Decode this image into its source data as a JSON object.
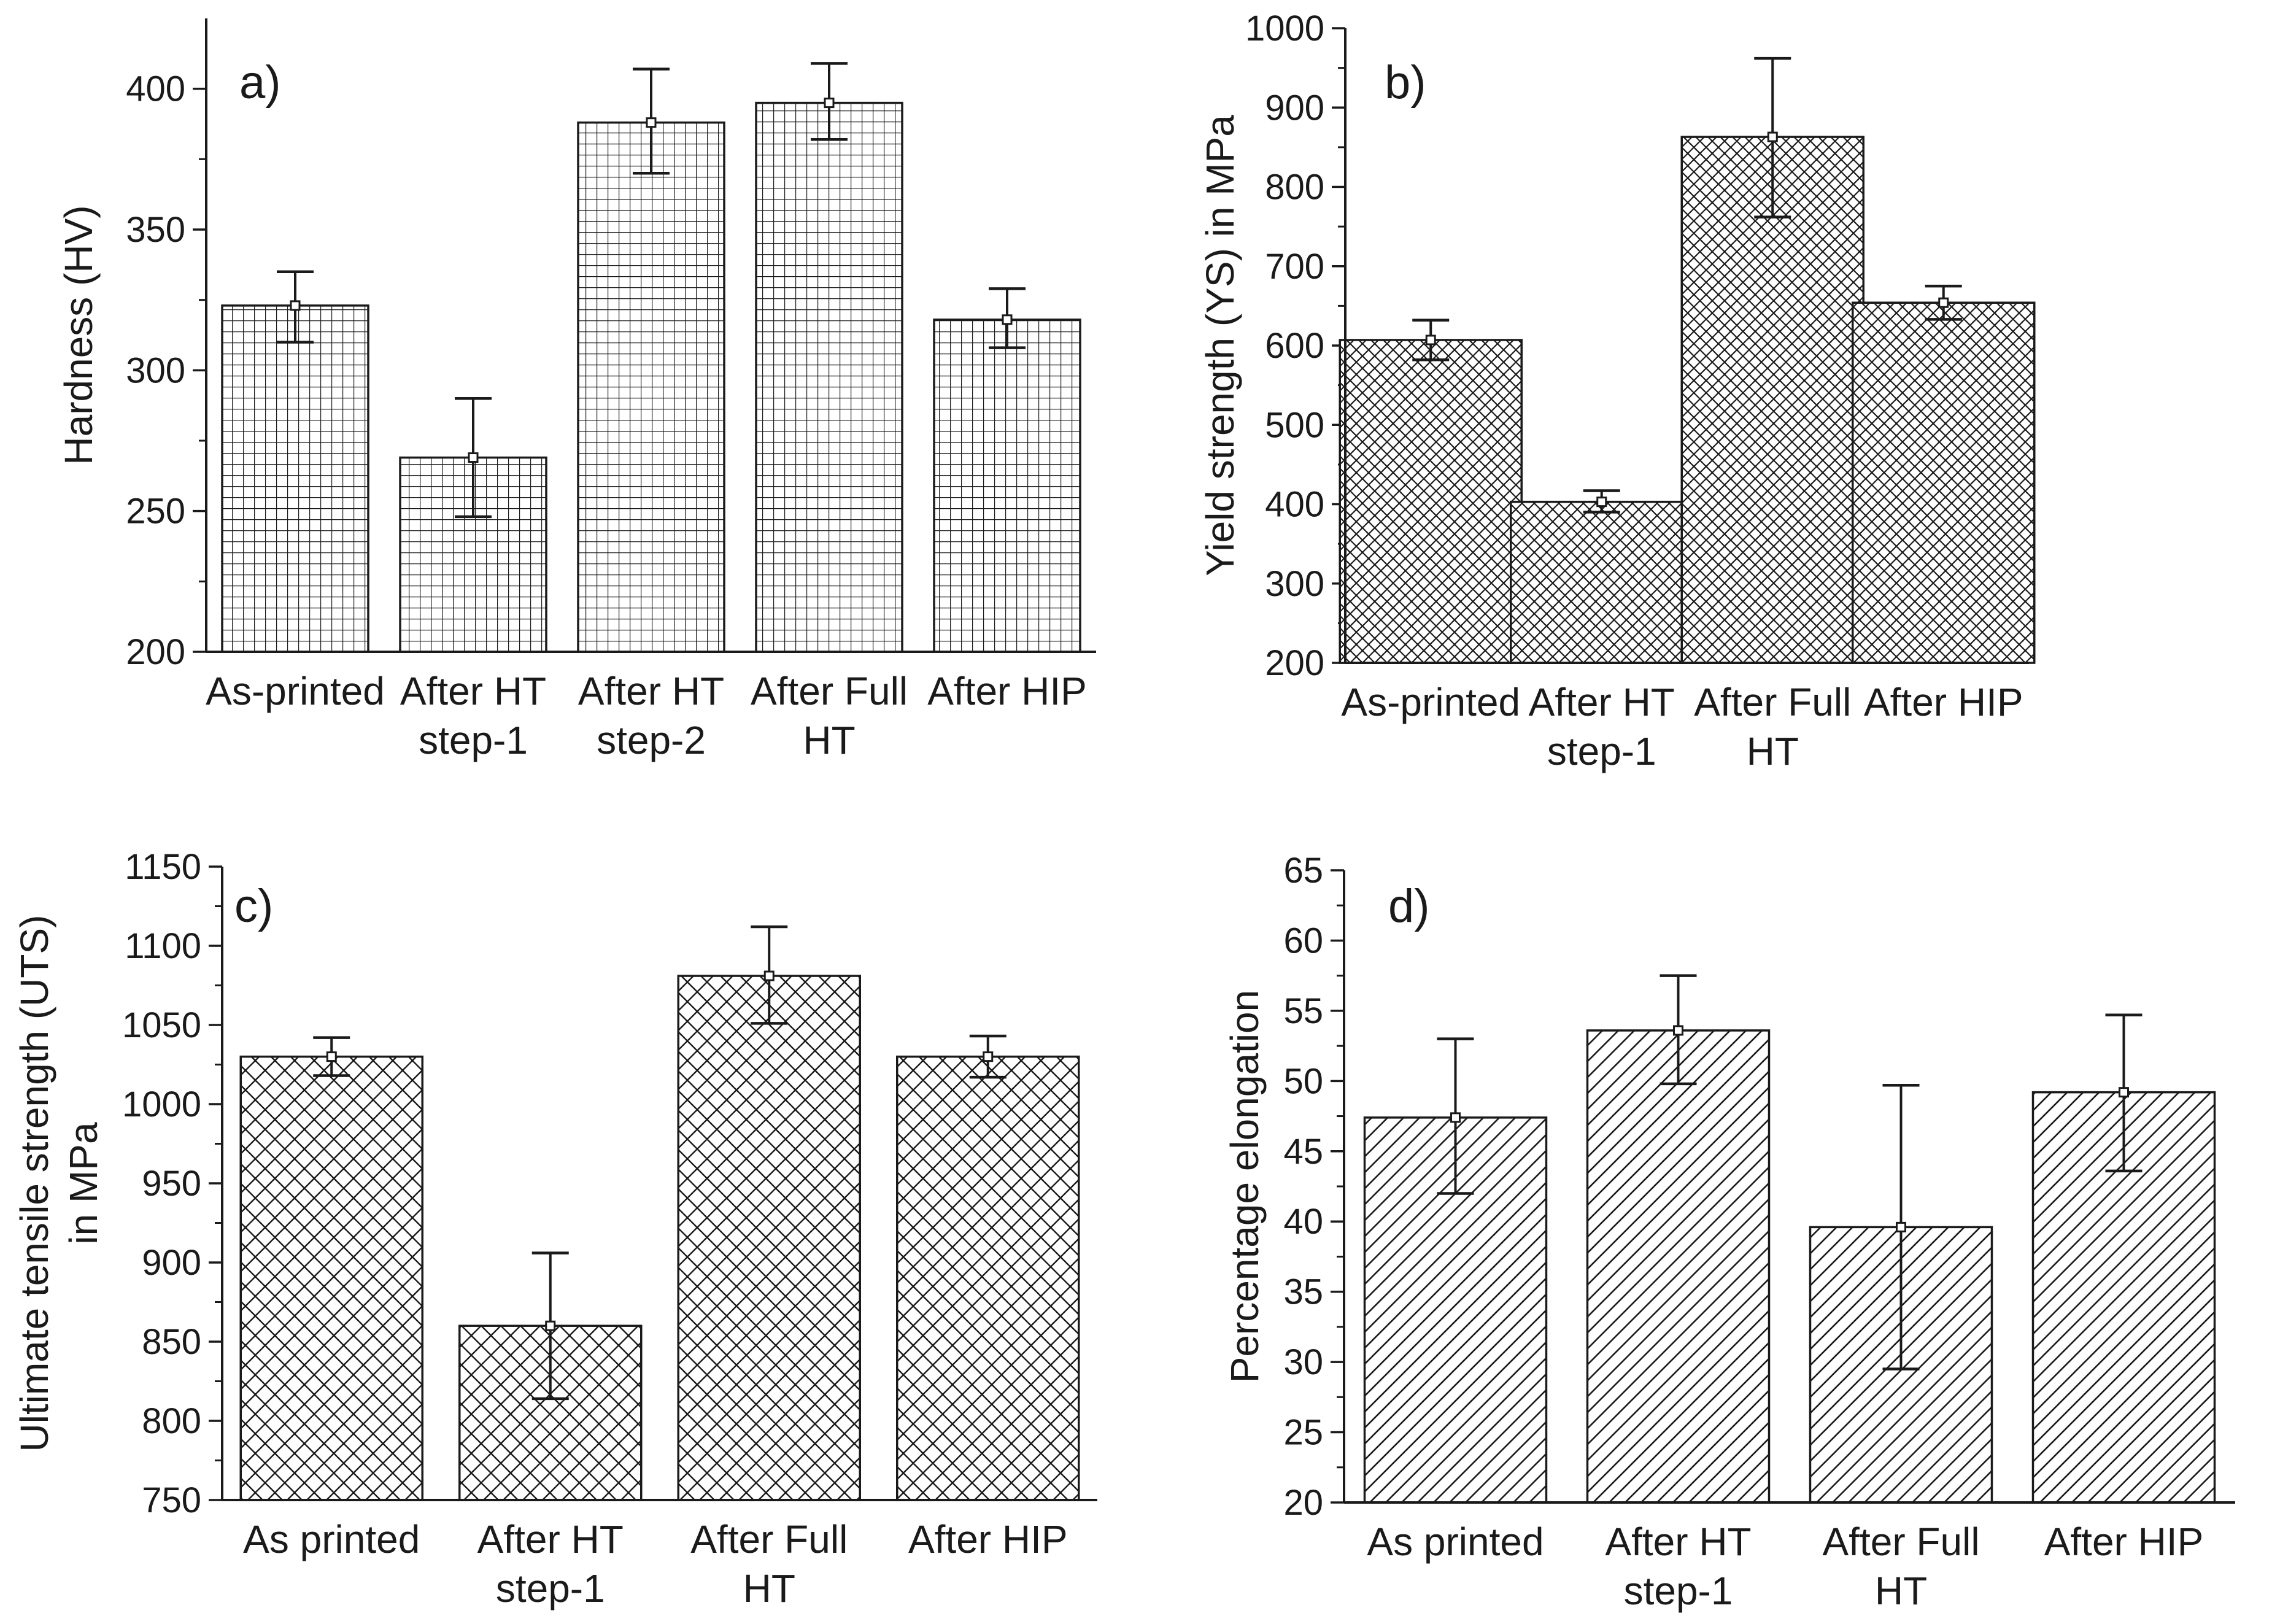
{
  "colors": {
    "ink": "#1a1a1a",
    "bar_fill": "#ffffff",
    "hatch": "#1a1a1a"
  },
  "chart_data": [
    {
      "id": "a",
      "panel_label": "a)",
      "type": "bar",
      "pattern": "grid",
      "ylabel": [
        "Hardness (HV)"
      ],
      "ylim": [
        200,
        425
      ],
      "yticks": [
        200,
        250,
        300,
        350,
        400
      ],
      "categories": [
        [
          "As-printed"
        ],
        [
          "After HT",
          "step-1"
        ],
        [
          "After HT",
          "step-2"
        ],
        [
          "After Full",
          "HT"
        ],
        [
          "After HIP"
        ]
      ],
      "values": [
        323,
        269,
        388,
        395,
        318
      ],
      "errors": [
        [
          310,
          335
        ],
        [
          248,
          290
        ],
        [
          370,
          407
        ],
        [
          382,
          409
        ],
        [
          308,
          329
        ]
      ]
    },
    {
      "id": "b",
      "panel_label": "b)",
      "type": "bar",
      "pattern": "crosshatch-fine",
      "ylabel": [
        "Yield strength (YS) in MPa"
      ],
      "ylim": [
        200,
        1000
      ],
      "yticks": [
        200,
        300,
        400,
        500,
        600,
        700,
        800,
        900,
        1000
      ],
      "categories": [
        [
          "As-printed"
        ],
        [
          "After HT",
          "step-1"
        ],
        [
          "After Full",
          "HT"
        ],
        [
          "After HIP"
        ]
      ],
      "values": [
        607,
        403,
        863,
        654
      ],
      "errors": [
        [
          582,
          632
        ],
        [
          390,
          417
        ],
        [
          762,
          962
        ],
        [
          633,
          675
        ]
      ]
    },
    {
      "id": "c",
      "panel_label": "c)",
      "type": "bar",
      "pattern": "crosshatch",
      "ylabel": [
        "Ultimate tensile strength (UTS)",
        "in MPa"
      ],
      "ylim": [
        750,
        1150
      ],
      "yticks": [
        750,
        800,
        850,
        900,
        950,
        1000,
        1050,
        1100,
        1150
      ],
      "categories": [
        [
          "As printed"
        ],
        [
          "After HT",
          "step-1"
        ],
        [
          "After Full",
          "HT"
        ],
        [
          "After HIP"
        ]
      ],
      "values": [
        1030,
        860,
        1081,
        1030
      ],
      "errors": [
        [
          1018,
          1042
        ],
        [
          814,
          906
        ],
        [
          1051,
          1112
        ],
        [
          1017,
          1043
        ]
      ]
    },
    {
      "id": "d",
      "panel_label": "d)",
      "type": "bar",
      "pattern": "diagonal",
      "ylabel": [
        "Percentage elongation"
      ],
      "ylim": [
        20,
        65
      ],
      "yticks": [
        20,
        25,
        30,
        35,
        40,
        45,
        50,
        55,
        60,
        65
      ],
      "categories": [
        [
          "As printed"
        ],
        [
          "After HT",
          "step-1"
        ],
        [
          "After Full",
          "HT"
        ],
        [
          "After HIP"
        ]
      ],
      "values": [
        47.4,
        53.6,
        39.6,
        49.2
      ],
      "errors": [
        [
          42,
          53
        ],
        [
          49.8,
          57.5
        ],
        [
          29.5,
          49.7
        ],
        [
          43.6,
          54.7
        ]
      ]
    }
  ]
}
